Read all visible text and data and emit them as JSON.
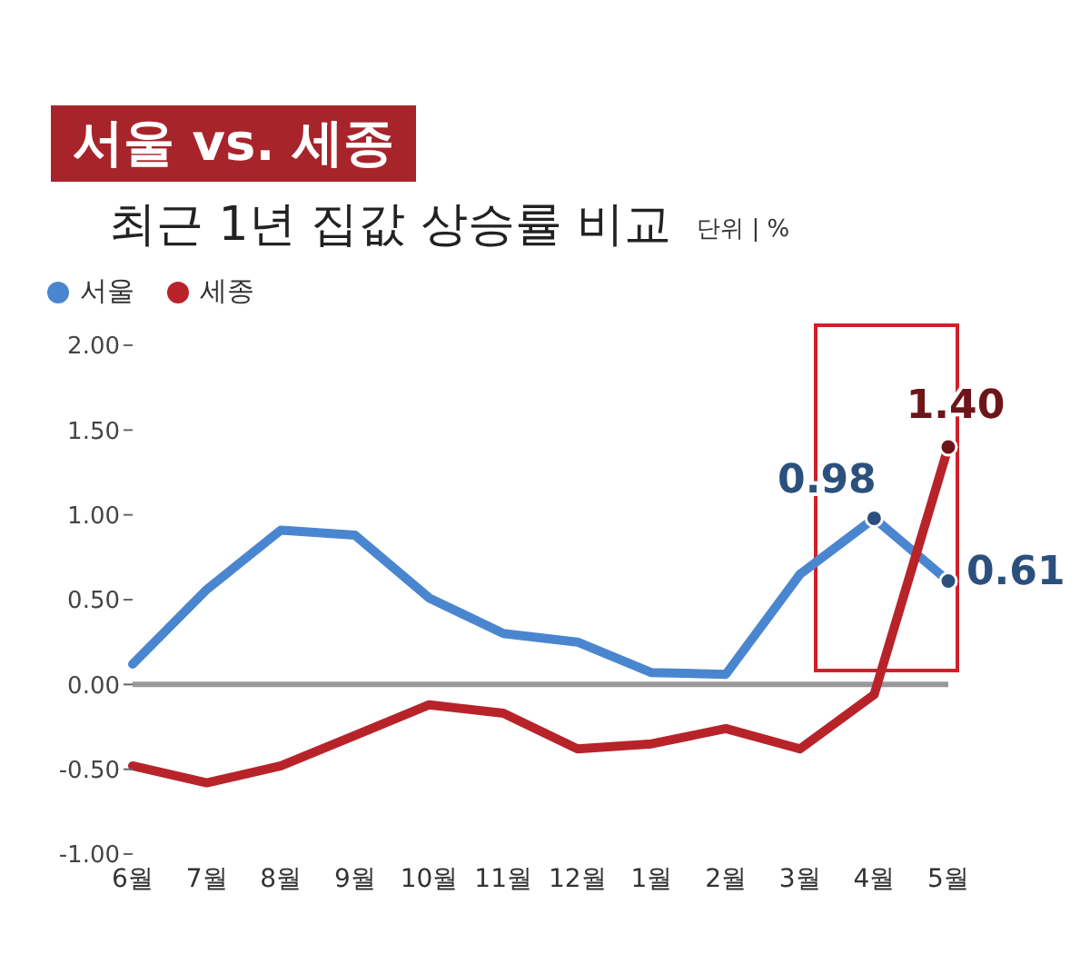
{
  "chart_data": {
    "type": "line",
    "title": "서울 vs. 세종",
    "subtitle": "최근 1년 집값 상승률 비교",
    "annotations": [
      "단위 | %"
    ],
    "categories": [
      "6월",
      "7월",
      "8월",
      "9월",
      "10월",
      "11월",
      "12월",
      "1월",
      "2월",
      "3월",
      "4월",
      "5월"
    ],
    "series": [
      {
        "name": "서울",
        "color": "#4a86d0",
        "values": [
          0.12,
          0.56,
          0.91,
          0.88,
          0.51,
          0.3,
          0.25,
          0.07,
          0.06,
          0.65,
          0.98,
          0.61
        ],
        "value_labels": [
          null,
          null,
          null,
          null,
          null,
          null,
          null,
          null,
          null,
          null,
          "0.98",
          "0.61"
        ]
      },
      {
        "name": "세종",
        "color": "#b8232a",
        "values": [
          -0.48,
          -0.58,
          -0.48,
          -0.3,
          -0.12,
          -0.17,
          -0.38,
          -0.35,
          -0.26,
          -0.38,
          -0.06,
          1.4
        ],
        "value_labels": [
          null,
          null,
          null,
          null,
          null,
          null,
          null,
          null,
          null,
          null,
          null,
          "1.40"
        ]
      }
    ],
    "ylim": [
      -1,
      2
    ],
    "yticks": [
      {
        "value": -1,
        "label": "-1.00"
      },
      {
        "value": -0.5,
        "label": "-0.50"
      },
      {
        "value": 0,
        "label": "0.00"
      },
      {
        "value": 0.5,
        "label": "0.50"
      },
      {
        "value": 1,
        "label": "1.00"
      },
      {
        "value": 1.5,
        "label": "1.50"
      },
      {
        "value": 2,
        "label": "2.00"
      }
    ],
    "ref_lines": [
      {
        "axis": "y",
        "value": 0,
        "color": "#999999"
      }
    ],
    "grid": false,
    "legend": "top left",
    "marker": "none",
    "line_style": "solid"
  }
}
